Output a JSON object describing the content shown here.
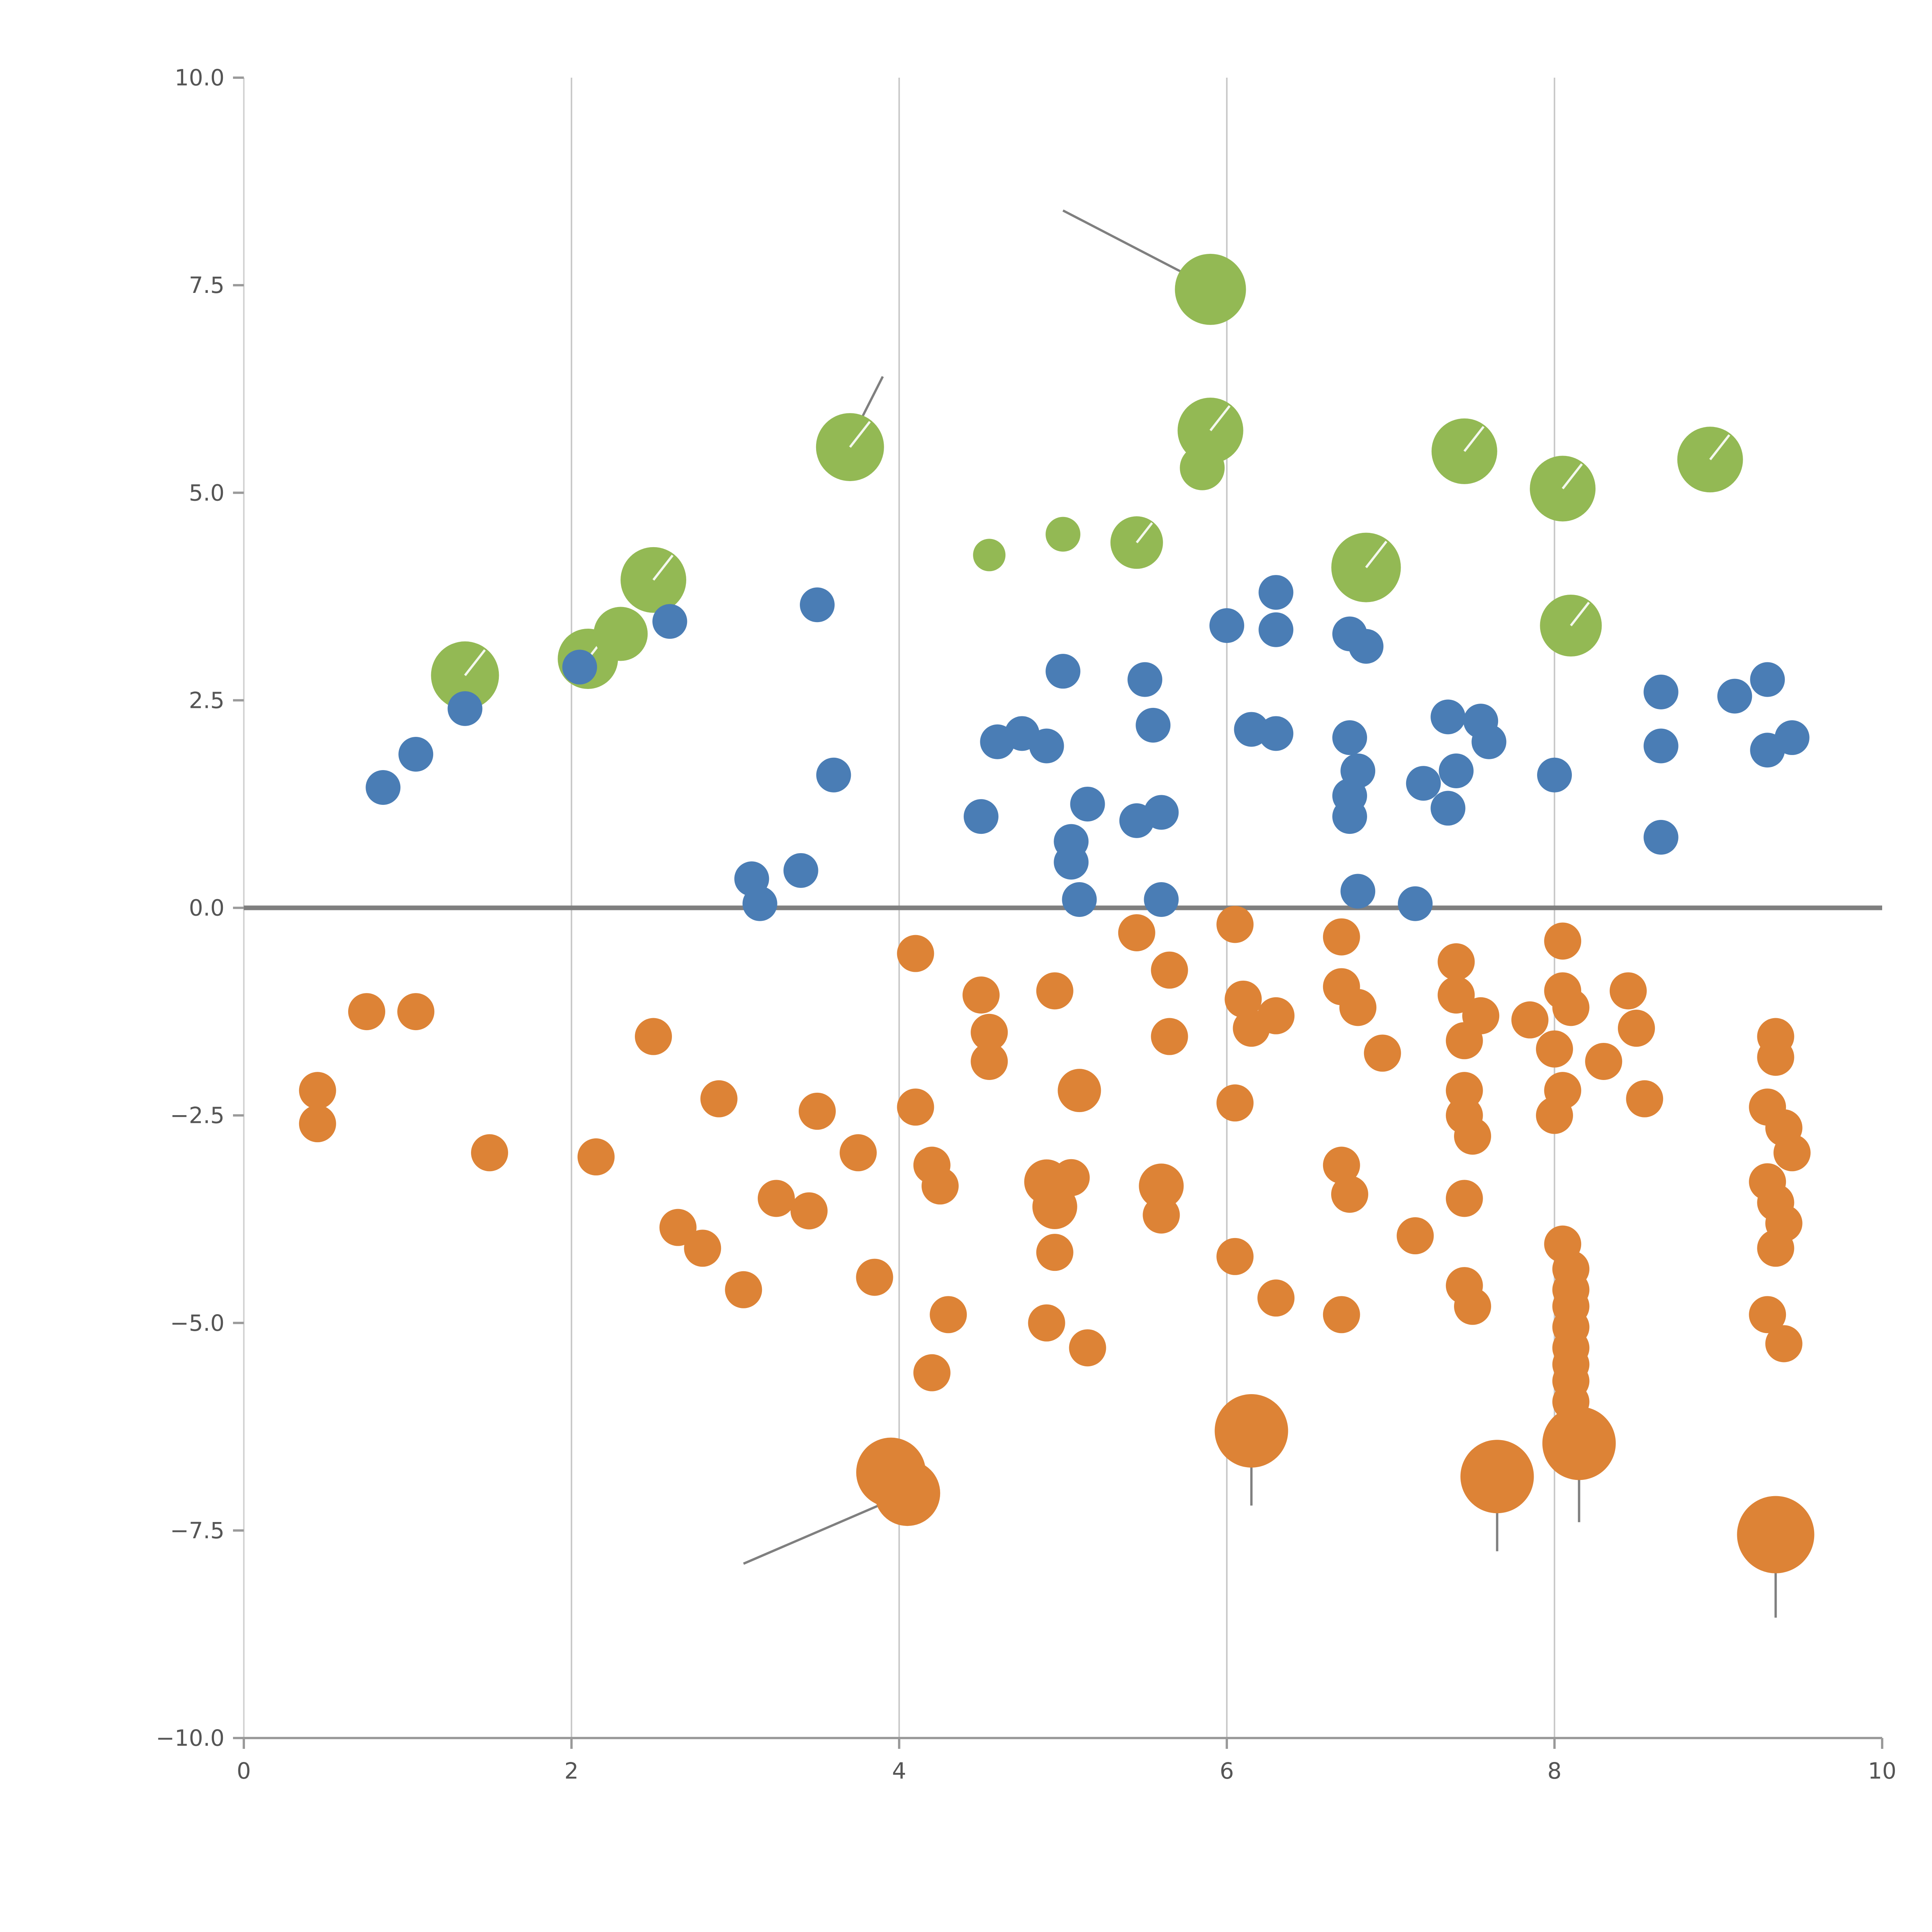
{
  "figure": {
    "background": "#ffffff"
  },
  "chart_data": {
    "type": "scatter",
    "title": "",
    "subtitle": "",
    "xlabel": "",
    "ylabel": "",
    "xlim": [
      0,
      10
    ],
    "ylim": [
      -10,
      10
    ],
    "legend": "none",
    "grid": {
      "vertical_x": [
        2,
        4,
        6,
        8
      ],
      "horizontal": false,
      "color": "#c9c9c9"
    },
    "zero_line": {
      "y": 0,
      "color": "#7f7f7f"
    },
    "axis": {
      "bottom_spine_color": "#9a9a9a",
      "left_spine_color": "#d2d2d2",
      "tick_color": "#9a9a9a",
      "label_color": "#555555"
    },
    "x_ticks": [
      0,
      2,
      4,
      6,
      8,
      10
    ],
    "x_tick_labels": [
      "0",
      "2",
      "4",
      "6",
      "8",
      "10"
    ],
    "y_ticks": [
      10,
      7.5,
      5,
      2.5,
      0,
      -2.5,
      -5,
      -7.5,
      -10
    ],
    "y_tick_labels": [
      "10.0",
      "7.5",
      "5.0",
      "2.5",
      "0.0",
      "−2.5",
      "−5.0",
      "−7.5",
      "−10.0"
    ],
    "marker_pointer": {
      "color": "#ffffff",
      "angle_deg": -52
    },
    "sticks": {
      "color": "#7f7f7f",
      "segments": [
        [
          5.0,
          8.4,
          5.88,
          7.5
        ],
        [
          3.72,
          5.7,
          3.9,
          6.4
        ],
        [
          4.05,
          -7.05,
          3.05,
          -7.9
        ],
        [
          6.15,
          -6.45,
          6.15,
          -7.2
        ],
        [
          7.65,
          -7.0,
          7.65,
          -7.75
        ],
        [
          8.15,
          -6.6,
          8.15,
          -7.4
        ],
        [
          9.35,
          -7.7,
          9.35,
          -8.55
        ]
      ]
    },
    "series": [
      {
        "name": "group-green",
        "color": "#93b954",
        "default_r": 85,
        "points": [
          [
            1.35,
            2.8,
            88,
            1
          ],
          [
            2.1,
            3.0,
            78,
            1
          ],
          [
            2.3,
            3.3,
            70,
            0
          ],
          [
            2.5,
            3.95,
            85,
            1
          ],
          [
            3.7,
            5.55,
            88,
            1
          ],
          [
            4.55,
            4.25,
            42,
            0
          ],
          [
            5.0,
            4.5,
            45,
            0
          ],
          [
            5.45,
            4.4,
            68,
            1
          ],
          [
            5.9,
            7.45,
            92,
            0
          ],
          [
            5.9,
            5.75,
            85,
            1
          ],
          [
            5.85,
            5.3,
            58,
            0
          ],
          [
            6.85,
            4.1,
            90,
            1
          ],
          [
            7.45,
            5.5,
            85,
            1
          ],
          [
            8.05,
            5.05,
            85,
            1
          ],
          [
            8.95,
            5.4,
            85,
            1
          ],
          [
            8.1,
            3.4,
            80,
            1
          ]
        ]
      },
      {
        "name": "group-blue",
        "color": "#4a7db5",
        "default_r": 45,
        "points": [
          [
            0.85,
            1.45
          ],
          [
            1.05,
            1.85
          ],
          [
            1.35,
            2.4
          ],
          [
            2.05,
            2.9
          ],
          [
            2.6,
            3.45
          ],
          [
            3.5,
            3.65
          ],
          [
            3.1,
            0.35
          ],
          [
            3.15,
            0.05
          ],
          [
            3.4,
            0.45
          ],
          [
            3.6,
            1.6
          ],
          [
            4.5,
            1.1
          ],
          [
            4.6,
            2.0
          ],
          [
            4.75,
            2.1
          ],
          [
            4.9,
            1.95
          ],
          [
            5.0,
            2.85
          ],
          [
            5.05,
            0.8
          ],
          [
            5.05,
            0.55
          ],
          [
            5.15,
            1.25
          ],
          [
            5.1,
            0.1
          ],
          [
            5.5,
            2.75
          ],
          [
            5.55,
            2.2
          ],
          [
            5.6,
            1.15
          ],
          [
            5.45,
            1.05
          ],
          [
            5.6,
            0.1
          ],
          [
            6.0,
            3.4
          ],
          [
            6.3,
            3.8
          ],
          [
            6.3,
            3.35
          ],
          [
            6.15,
            2.15
          ],
          [
            6.3,
            2.1
          ],
          [
            6.75,
            3.3
          ],
          [
            6.85,
            3.15
          ],
          [
            6.75,
            2.05
          ],
          [
            6.8,
            1.65
          ],
          [
            6.75,
            1.35
          ],
          [
            6.75,
            1.1
          ],
          [
            6.8,
            0.2
          ],
          [
            7.15,
            0.05
          ],
          [
            7.2,
            1.5
          ],
          [
            7.35,
            2.3
          ],
          [
            7.4,
            1.65
          ],
          [
            7.35,
            1.2
          ],
          [
            7.55,
            2.25
          ],
          [
            7.6,
            2.0
          ],
          [
            8.0,
            1.6
          ],
          [
            8.65,
            2.6
          ],
          [
            8.65,
            1.95
          ],
          [
            8.65,
            0.85
          ],
          [
            9.1,
            2.55
          ],
          [
            9.3,
            2.75
          ],
          [
            9.3,
            1.9
          ],
          [
            9.45,
            2.05
          ]
        ]
      },
      {
        "name": "group-orange",
        "color": "#dd8336",
        "default_r": 48,
        "points": [
          [
            0.45,
            -2.2
          ],
          [
            0.45,
            -2.6
          ],
          [
            0.75,
            -1.25
          ],
          [
            1.05,
            -1.25
          ],
          [
            1.5,
            -2.95
          ],
          [
            2.15,
            -3.0
          ],
          [
            2.5,
            -1.55
          ],
          [
            2.65,
            -3.85
          ],
          [
            2.8,
            -4.1
          ],
          [
            2.9,
            -2.3
          ],
          [
            3.05,
            -4.6
          ],
          [
            3.25,
            -3.5
          ],
          [
            3.45,
            -3.65
          ],
          [
            3.5,
            -2.45
          ],
          [
            3.75,
            -2.95
          ],
          [
            3.85,
            -4.45
          ],
          [
            4.1,
            -0.55
          ],
          [
            4.1,
            -2.4
          ],
          [
            4.2,
            -3.1
          ],
          [
            4.25,
            -3.35
          ],
          [
            4.2,
            -5.6
          ],
          [
            4.3,
            -4.9
          ],
          [
            4.5,
            -1.05
          ],
          [
            4.55,
            -1.5
          ],
          [
            4.55,
            -1.85
          ],
          [
            4.9,
            -3.3,
            58
          ],
          [
            4.95,
            -3.6,
            58
          ],
          [
            5.05,
            -3.25
          ],
          [
            4.95,
            -1.0
          ],
          [
            4.95,
            -4.15
          ],
          [
            4.9,
            -5.0
          ],
          [
            5.1,
            -2.2,
            56
          ],
          [
            5.15,
            -5.3
          ],
          [
            5.45,
            -0.3
          ],
          [
            5.65,
            -0.75
          ],
          [
            5.65,
            -1.55
          ],
          [
            5.6,
            -3.35,
            58
          ],
          [
            5.6,
            -3.7
          ],
          [
            6.05,
            -0.2
          ],
          [
            6.1,
            -1.1
          ],
          [
            6.15,
            -1.45
          ],
          [
            6.3,
            -1.3
          ],
          [
            6.05,
            -2.35
          ],
          [
            6.05,
            -4.2
          ],
          [
            6.3,
            -4.7
          ],
          [
            6.15,
            -6.3,
            95
          ],
          [
            6.7,
            -0.35
          ],
          [
            6.7,
            -0.95
          ],
          [
            6.8,
            -1.2
          ],
          [
            6.7,
            -3.1
          ],
          [
            6.75,
            -3.45
          ],
          [
            6.7,
            -4.9
          ],
          [
            6.95,
            -1.75
          ],
          [
            7.15,
            -3.95
          ],
          [
            7.4,
            -0.65
          ],
          [
            7.4,
            -1.05
          ],
          [
            7.45,
            -1.6
          ],
          [
            7.45,
            -2.2
          ],
          [
            7.45,
            -2.5
          ],
          [
            7.5,
            -2.75
          ],
          [
            7.45,
            -3.5
          ],
          [
            7.45,
            -4.55
          ],
          [
            7.5,
            -4.8
          ],
          [
            7.55,
            -1.3
          ],
          [
            7.65,
            -6.85,
            95
          ],
          [
            7.85,
            -1.35
          ],
          [
            8.05,
            -0.4
          ],
          [
            8.05,
            -1.0
          ],
          [
            8.1,
            -1.2
          ],
          [
            8.0,
            -1.7
          ],
          [
            8.05,
            -2.2
          ],
          [
            8.0,
            -2.5
          ],
          [
            8.05,
            -4.05
          ],
          [
            8.1,
            -4.35
          ],
          [
            8.1,
            -4.6
          ],
          [
            8.1,
            -4.8
          ],
          [
            8.1,
            -5.05
          ],
          [
            8.1,
            -5.3
          ],
          [
            8.1,
            -5.5
          ],
          [
            8.1,
            -5.7
          ],
          [
            8.1,
            -5.95
          ],
          [
            8.15,
            -6.45,
            95
          ],
          [
            8.3,
            -1.85
          ],
          [
            8.45,
            -1.0
          ],
          [
            8.5,
            -1.45
          ],
          [
            8.55,
            -2.3
          ],
          [
            9.35,
            -1.55
          ],
          [
            9.35,
            -1.8
          ],
          [
            9.3,
            -2.4
          ],
          [
            9.4,
            -2.65
          ],
          [
            9.45,
            -2.95
          ],
          [
            9.3,
            -3.3
          ],
          [
            9.35,
            -3.55
          ],
          [
            9.4,
            -3.8
          ],
          [
            9.35,
            -4.1
          ],
          [
            9.3,
            -4.9
          ],
          [
            9.4,
            -5.25
          ],
          [
            9.35,
            -7.55,
            100
          ],
          [
            3.95,
            -6.8,
            90
          ],
          [
            4.05,
            -7.05,
            85
          ]
        ]
      }
    ]
  }
}
